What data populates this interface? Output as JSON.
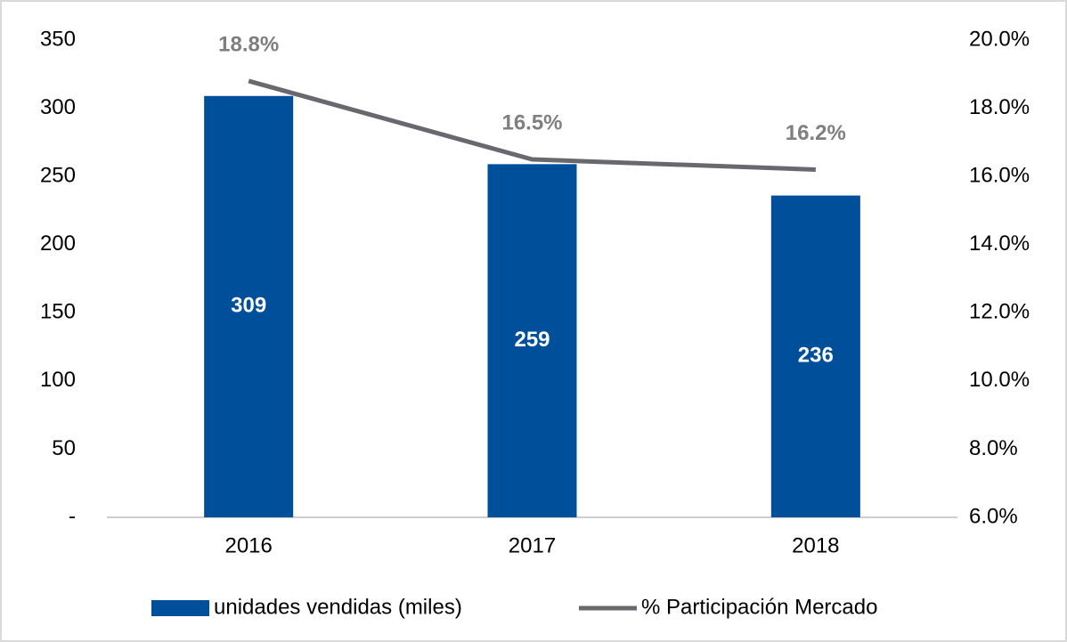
{
  "chart_data": {
    "type": "bar",
    "categories": [
      "2016",
      "2017",
      "2018"
    ],
    "series": [
      {
        "name": "unidades vendidas (miles)",
        "type": "bar",
        "color": "#004f9a",
        "values": [
          309,
          259,
          236
        ],
        "value_labels": [
          "309",
          "259",
          "236"
        ]
      },
      {
        "name": "% Participación Mercado",
        "type": "line",
        "axis": "y2",
        "color": "#69686e",
        "values": [
          18.8,
          16.5,
          16.2
        ],
        "value_labels": [
          "18.8%",
          "16.5%",
          "16.2%"
        ]
      }
    ],
    "ylim": [
      0,
      350
    ],
    "yticks": [
      {
        "value": 0,
        "label": "-"
      },
      50,
      100,
      150,
      200,
      250,
      300,
      350
    ],
    "y2lim": [
      6,
      20
    ],
    "y2ticks": [
      {
        "value": 6,
        "label": "6.0%"
      },
      {
        "value": 8,
        "label": "8.0%"
      },
      {
        "value": 10,
        "label": "10.0%"
      },
      {
        "value": 12,
        "label": "12.0%"
      },
      {
        "value": 14,
        "label": "14.0%"
      },
      {
        "value": 16,
        "label": "16.0%"
      },
      {
        "value": 18,
        "label": "18.0%"
      },
      {
        "value": 20,
        "label": "20.0%"
      }
    ],
    "legend": "bottom",
    "grid": false
  }
}
